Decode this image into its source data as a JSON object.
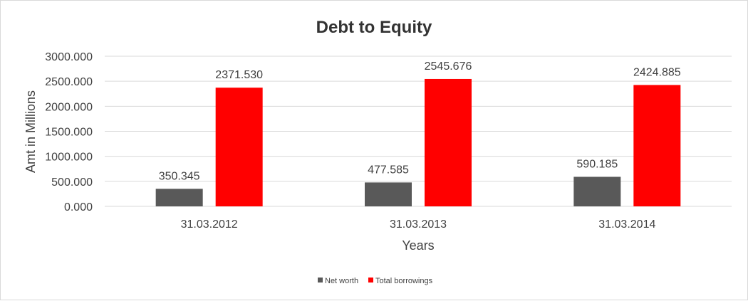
{
  "chart_data": {
    "type": "bar",
    "title": "Debt to Equity",
    "xlabel": "Years",
    "ylabel": "Amt in Millions",
    "categories": [
      "31.03.2012",
      "31.03.2013",
      "31.03.2014"
    ],
    "series": [
      {
        "name": "Net worth",
        "values": [
          350.345,
          477.585,
          590.185
        ],
        "color": "#595959"
      },
      {
        "name": "Total borrowings",
        "values": [
          2371.53,
          2545.676,
          2424.885
        ],
        "color": "#ff0000"
      }
    ],
    "value_labels": [
      [
        "350.345",
        "477.585",
        "590.185"
      ],
      [
        "2371.530",
        "2545.676",
        "2424.885"
      ]
    ],
    "ylim": [
      0,
      3000
    ],
    "yticks": [
      "0.000",
      "500.000",
      "1000.000",
      "1500.000",
      "2000.000",
      "2500.000",
      "3000.000"
    ],
    "grid": true,
    "legend_position": "bottom"
  }
}
